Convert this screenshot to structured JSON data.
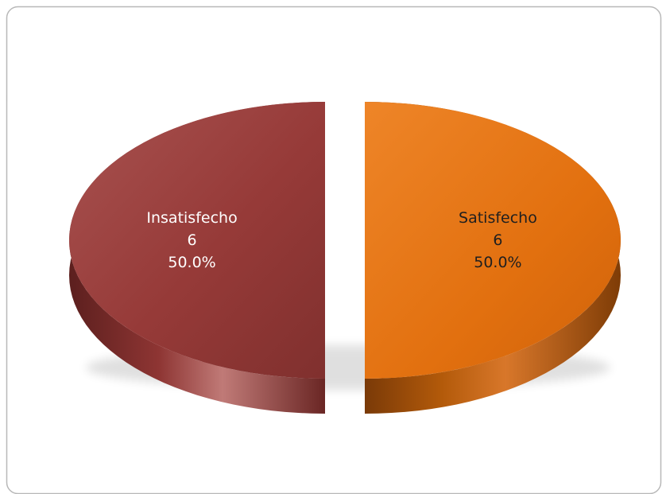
{
  "chart_data": {
    "type": "pie",
    "style": "3d-exploded",
    "slices": [
      {
        "label": "Insatisfecho",
        "value": 6,
        "percent": "50.0%",
        "color": "#953735"
      },
      {
        "label": "Satisfecho",
        "value": 6,
        "percent": "50.0%",
        "color": "#E46C0A"
      }
    ],
    "legend": "none"
  },
  "colors": {
    "border": "#b8b8b8",
    "background": "#ffffff"
  }
}
